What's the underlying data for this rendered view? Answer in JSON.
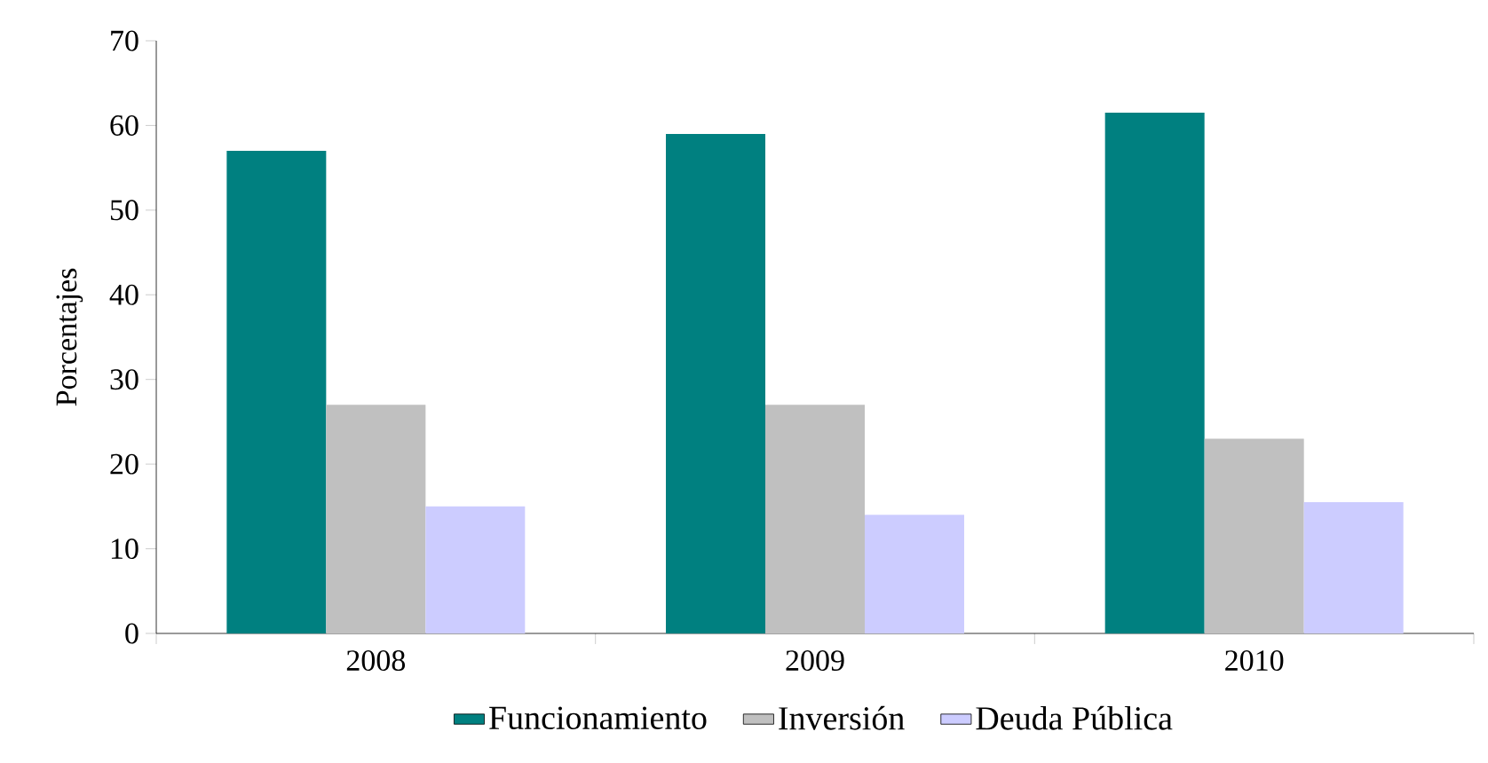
{
  "chart_data": {
    "type": "bar",
    "ylabel": "Porcentajes",
    "categories": [
      "2008",
      "2009",
      "2010"
    ],
    "series": [
      {
        "name": "Funcionamiento",
        "color": "#008080",
        "values": [
          57,
          59,
          61.5
        ]
      },
      {
        "name": "Inversión",
        "color": "#c0c0c0",
        "values": [
          27,
          27,
          23
        ]
      },
      {
        "name": "Deuda Pública",
        "color": "#ccccff",
        "values": [
          15,
          14,
          15.5
        ]
      }
    ],
    "ylim": [
      0,
      70
    ],
    "yticks": [
      0,
      10,
      20,
      30,
      40,
      50,
      60,
      70
    ],
    "grid": false,
    "legend": "bottom"
  }
}
